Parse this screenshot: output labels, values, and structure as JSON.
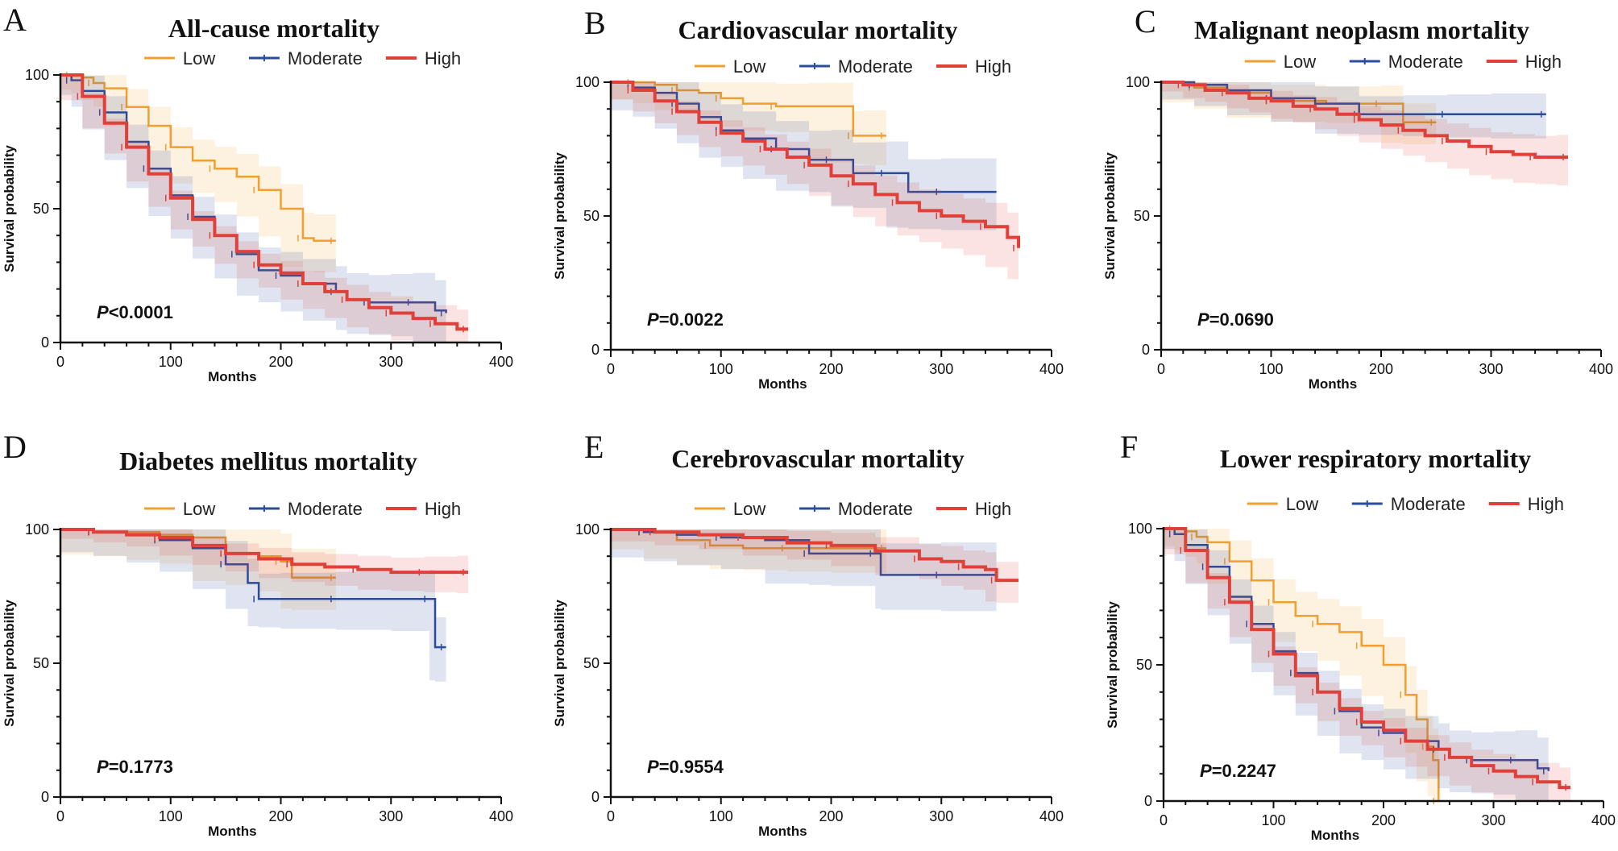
{
  "colors": {
    "low": "#F0A030",
    "moderate": "#2B4C9A",
    "high": "#E0403A",
    "axis": "#111111"
  },
  "chart_data": [
    {
      "type": "line",
      "letter": "A",
      "title": "All-cause mortality",
      "xlabel": "Months",
      "ylabel": "Survival probability",
      "xlim": [
        0,
        400
      ],
      "ylim": [
        0,
        100
      ],
      "xticks": [
        0,
        100,
        200,
        300,
        400
      ],
      "yticks": [
        0,
        50,
        100
      ],
      "p_label": "P",
      "p_value": "<0.0001",
      "legend_position": "top-center",
      "series": [
        {
          "name": "Low",
          "key": "low",
          "x": [
            0,
            10,
            20,
            30,
            40,
            60,
            80,
            100,
            120,
            140,
            160,
            180,
            200,
            220,
            230,
            250
          ],
          "y": [
            100,
            100,
            99,
            97,
            95,
            88,
            81,
            73,
            68,
            65,
            62,
            57,
            50,
            39,
            38,
            38
          ],
          "band_width": 5
        },
        {
          "name": "Moderate",
          "key": "moderate",
          "x": [
            0,
            10,
            20,
            40,
            60,
            80,
            100,
            120,
            140,
            160,
            180,
            200,
            220,
            250,
            260,
            280,
            300,
            320,
            340,
            350
          ],
          "y": [
            100,
            98,
            94,
            86,
            75,
            65,
            55,
            47,
            40,
            33,
            27,
            25,
            22,
            19,
            16,
            15,
            15,
            15,
            12,
            11
          ],
          "band_width": 5
        },
        {
          "name": "High",
          "key": "high",
          "x": [
            0,
            20,
            40,
            60,
            80,
            100,
            120,
            140,
            160,
            180,
            200,
            220,
            240,
            260,
            280,
            300,
            320,
            340,
            360,
            370
          ],
          "y": [
            100,
            92,
            82,
            73,
            63,
            54,
            46,
            40,
            34,
            29,
            26,
            22,
            19,
            16,
            13,
            11,
            9,
            7,
            5,
            5
          ],
          "band_width": 1
        }
      ]
    },
    {
      "type": "line",
      "letter": "B",
      "title": "Cardiovascular mortality",
      "xlabel": "Months",
      "ylabel": "Survival probability",
      "xlim": [
        0,
        400
      ],
      "ylim": [
        0,
        100
      ],
      "xticks": [
        0,
        100,
        200,
        300,
        400
      ],
      "yticks": [
        0,
        50,
        100
      ],
      "p_label": "P",
      "p_value": "=0.0022",
      "legend_position": "top-center",
      "series": [
        {
          "name": "Low",
          "key": "low",
          "x": [
            0,
            20,
            40,
            60,
            80,
            100,
            120,
            150,
            180,
            220,
            230,
            250
          ],
          "y": [
            100,
            100,
            99,
            97,
            96,
            94,
            92,
            91,
            91,
            80,
            80,
            80
          ],
          "band_width": 6
        },
        {
          "name": "Moderate",
          "key": "moderate",
          "x": [
            0,
            20,
            40,
            60,
            80,
            100,
            120,
            150,
            180,
            200,
            220,
            250,
            270,
            300,
            350
          ],
          "y": [
            100,
            98,
            96,
            92,
            87,
            82,
            79,
            75,
            71,
            71,
            66,
            66,
            59,
            59,
            59
          ],
          "band_width": 8
        },
        {
          "name": "High",
          "key": "high",
          "x": [
            0,
            20,
            40,
            60,
            80,
            100,
            120,
            140,
            160,
            180,
            200,
            220,
            240,
            260,
            280,
            300,
            320,
            340,
            360,
            370
          ],
          "y": [
            100,
            97,
            93,
            89,
            85,
            81,
            78,
            75,
            72,
            69,
            65,
            62,
            58,
            55,
            52,
            50,
            48,
            46,
            42,
            38
          ],
          "band_width": 3
        }
      ]
    },
    {
      "type": "line",
      "letter": "C",
      "title": "Malignant neoplasm mortality",
      "xlabel": "Months",
      "ylabel": "Survival probability",
      "xlim": [
        0,
        400
      ],
      "ylim": [
        0,
        100
      ],
      "xticks": [
        0,
        100,
        200,
        300,
        400
      ],
      "yticks": [
        0,
        50,
        100
      ],
      "p_label": "P",
      "p_value": "=0.0690",
      "legend_position": "top-center",
      "series": [
        {
          "name": "Low",
          "key": "low",
          "x": [
            0,
            30,
            60,
            100,
            150,
            200,
            220,
            250
          ],
          "y": [
            100,
            98,
            96,
            93,
            92,
            92,
            85,
            85
          ],
          "band_width": 5
        },
        {
          "name": "Moderate",
          "key": "moderate",
          "x": [
            0,
            30,
            60,
            100,
            140,
            180,
            220,
            260,
            300,
            350
          ],
          "y": [
            100,
            99,
            97,
            94,
            92,
            88,
            88,
            88,
            88,
            88
          ],
          "band_width": 5
        },
        {
          "name": "High",
          "key": "high",
          "x": [
            0,
            20,
            40,
            60,
            80,
            100,
            120,
            140,
            160,
            180,
            200,
            220,
            240,
            260,
            280,
            300,
            320,
            340,
            360,
            370
          ],
          "y": [
            100,
            99,
            97,
            96,
            94,
            93,
            91,
            90,
            88,
            86,
            84,
            82,
            80,
            78,
            76,
            74,
            73,
            72,
            72,
            72
          ],
          "band_width": 2
        }
      ]
    },
    {
      "type": "line",
      "letter": "D",
      "title": "Diabetes mellitus mortality",
      "xlabel": "Months",
      "ylabel": "Survival probability",
      "xlim": [
        0,
        400
      ],
      "ylim": [
        0,
        100
      ],
      "xticks": [
        0,
        100,
        200,
        300,
        400
      ],
      "yticks": [
        0,
        50,
        100
      ],
      "p_label": "P",
      "p_value": "=0.1773",
      "legend_position": "top-center",
      "series": [
        {
          "name": "Low",
          "key": "low",
          "x": [
            0,
            30,
            60,
            90,
            120,
            150,
            180,
            200,
            210,
            250
          ],
          "y": [
            100,
            99,
            99,
            98,
            97,
            91,
            90,
            88,
            82,
            82
          ],
          "band_width": 8
        },
        {
          "name": "Moderate",
          "key": "moderate",
          "x": [
            0,
            30,
            60,
            90,
            120,
            150,
            170,
            180,
            200,
            250,
            300,
            335,
            340,
            350
          ],
          "y": [
            100,
            99,
            98,
            96,
            93,
            87,
            80,
            74,
            74,
            74,
            74,
            74,
            56,
            56
          ],
          "band_width": 7
        },
        {
          "name": "High",
          "key": "high",
          "x": [
            0,
            30,
            60,
            90,
            120,
            150,
            180,
            210,
            240,
            270,
            300,
            330,
            360,
            370
          ],
          "y": [
            100,
            99,
            98,
            97,
            94,
            91,
            89,
            87,
            86,
            85,
            84,
            84,
            84,
            84
          ],
          "band_width": 2
        }
      ]
    },
    {
      "type": "line",
      "letter": "E",
      "title": "Cerebrovascular mortality",
      "xlabel": "Months",
      "ylabel": "Survival probability",
      "xlim": [
        0,
        400
      ],
      "ylim": [
        0,
        100
      ],
      "xticks": [
        0,
        100,
        200,
        300,
        400
      ],
      "yticks": [
        0,
        50,
        100
      ],
      "p_label": "P",
      "p_value": "=0.9554",
      "legend_position": "top-center",
      "series": [
        {
          "name": "Low",
          "key": "low",
          "x": [
            0,
            30,
            60,
            90,
            120,
            160,
            200,
            250
          ],
          "y": [
            100,
            99,
            96,
            94,
            93,
            93,
            93,
            93
          ],
          "band_width": 6
        },
        {
          "name": "Moderate",
          "key": "moderate",
          "x": [
            0,
            30,
            60,
            100,
            140,
            180,
            200,
            240,
            245,
            300,
            350
          ],
          "y": [
            100,
            99,
            98,
            97,
            96,
            91,
            91,
            91,
            83,
            83,
            83
          ],
          "band_width": 9
        },
        {
          "name": "High",
          "key": "high",
          "x": [
            0,
            40,
            80,
            120,
            160,
            200,
            240,
            280,
            300,
            320,
            340,
            350,
            370
          ],
          "y": [
            100,
            99,
            98,
            97,
            95,
            94,
            92,
            89,
            88,
            86,
            85,
            81,
            81
          ],
          "band_width": 3
        }
      ]
    },
    {
      "type": "line",
      "letter": "F",
      "title": "Lower respiratory mortality",
      "xlabel": "Months",
      "ylabel": "Survival probability",
      "xlim": [
        0,
        400
      ],
      "ylim": [
        0,
        100
      ],
      "xticks": [
        0,
        100,
        200,
        300,
        400
      ],
      "yticks": [
        0,
        50,
        100
      ],
      "p_label": "P",
      "p_value": "=0.2247",
      "legend_position": "top-center",
      "series": [
        {
          "name": "Low",
          "key": "low",
          "x": [
            0,
            10,
            20,
            30,
            40,
            60,
            80,
            100,
            120,
            140,
            160,
            180,
            200,
            220,
            230,
            240,
            245,
            250
          ],
          "y": [
            100,
            100,
            99,
            97,
            95,
            88,
            81,
            73,
            68,
            65,
            62,
            57,
            50,
            39,
            30,
            20,
            15,
            0
          ],
          "band_width": 6
        },
        {
          "name": "Moderate",
          "key": "moderate",
          "x": [
            0,
            10,
            20,
            40,
            60,
            80,
            100,
            120,
            140,
            160,
            180,
            200,
            220,
            250,
            260,
            280,
            300,
            320,
            340,
            350
          ],
          "y": [
            100,
            98,
            94,
            86,
            75,
            65,
            55,
            47,
            40,
            33,
            27,
            25,
            22,
            19,
            16,
            15,
            15,
            15,
            12,
            11
          ],
          "band_width": 5
        },
        {
          "name": "High",
          "key": "high",
          "x": [
            0,
            20,
            40,
            60,
            80,
            100,
            120,
            140,
            160,
            180,
            200,
            220,
            240,
            260,
            280,
            300,
            320,
            340,
            360,
            370
          ],
          "y": [
            100,
            92,
            82,
            73,
            63,
            54,
            46,
            40,
            34,
            29,
            26,
            22,
            19,
            16,
            13,
            11,
            9,
            7,
            5,
            5
          ],
          "band_width": 1
        }
      ]
    }
  ]
}
